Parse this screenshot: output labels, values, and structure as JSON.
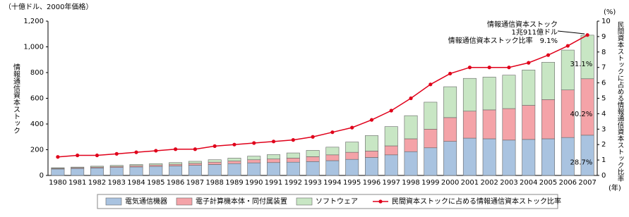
{
  "chart_data": {
    "type": "stacked_bar_line",
    "unit_label": "（十億ドル、2000年価格）",
    "y_label": "情報通信資本ストック",
    "y2_unit_label": "(%)",
    "y2_label": "民間資本ストックに占める情報通信資本ストック比率",
    "x_unit_label": "(年)",
    "categories": [
      "1980",
      "1981",
      "1982",
      "1983",
      "1984",
      "1985",
      "1986",
      "1987",
      "1988",
      "1989",
      "1990",
      "1991",
      "1992",
      "1993",
      "1994",
      "1995",
      "1996",
      "1997",
      "1998",
      "1999",
      "2000",
      "2001",
      "2002",
      "2003",
      "2004",
      "2005",
      "2006",
      "2007"
    ],
    "series": [
      {
        "name": "電気通信機器",
        "color": "#a9c3e0",
        "share_label": "28.7%",
        "values": [
          50,
          54,
          58,
          62,
          66,
          70,
          74,
          79,
          85,
          92,
          98,
          100,
          103,
          108,
          115,
          125,
          140,
          160,
          185,
          215,
          265,
          290,
          285,
          275,
          280,
          285,
          295,
          313
        ]
      },
      {
        "name": "電子計算機本体・同付属装置",
        "color": "#f4a3a8",
        "share_label": "40.2%",
        "values": [
          5,
          6,
          7,
          8,
          10,
          11,
          13,
          15,
          18,
          20,
          24,
          28,
          32,
          38,
          45,
          55,
          50,
          70,
          100,
          145,
          185,
          210,
          225,
          245,
          265,
          305,
          370,
          439
        ]
      },
      {
        "name": "ソフトウェア",
        "color": "#c8e6c4",
        "share_label": "31.1%",
        "values": [
          5,
          5,
          7,
          8,
          9,
          11,
          13,
          16,
          19,
          23,
          28,
          34,
          40,
          49,
          60,
          80,
          120,
          150,
          180,
          210,
          240,
          255,
          255,
          260,
          275,
          290,
          310,
          339
        ]
      },
      {
        "name": "民間資本ストックに占める情報通信資本ストック比率",
        "color": "#e0001a",
        "axis": "y2",
        "values": [
          1.2,
          1.3,
          1.3,
          1.4,
          1.5,
          1.6,
          1.7,
          1.7,
          1.9,
          2.0,
          2.1,
          2.2,
          2.3,
          2.5,
          2.8,
          3.1,
          3.6,
          4.2,
          5.0,
          5.9,
          6.6,
          7.0,
          7.0,
          7.0,
          7.3,
          7.8,
          8.4,
          9.1
        ]
      }
    ],
    "annotations": [
      "情報通信資本ストック",
      "1兆911億ドル",
      "情報通信資本ストック比率　9.1%"
    ],
    "ylim": [
      0,
      1200
    ],
    "yticks": [
      0,
      200,
      400,
      600,
      800,
      {
        "value": 1000,
        "label": "1,000"
      },
      {
        "value": 1200,
        "label": "1,200"
      }
    ],
    "y2lim": [
      0,
      10
    ],
    "y2ticks": [
      0,
      1,
      2,
      3,
      4,
      5,
      6,
      7,
      8,
      9,
      10
    ],
    "legend": "bottom"
  }
}
